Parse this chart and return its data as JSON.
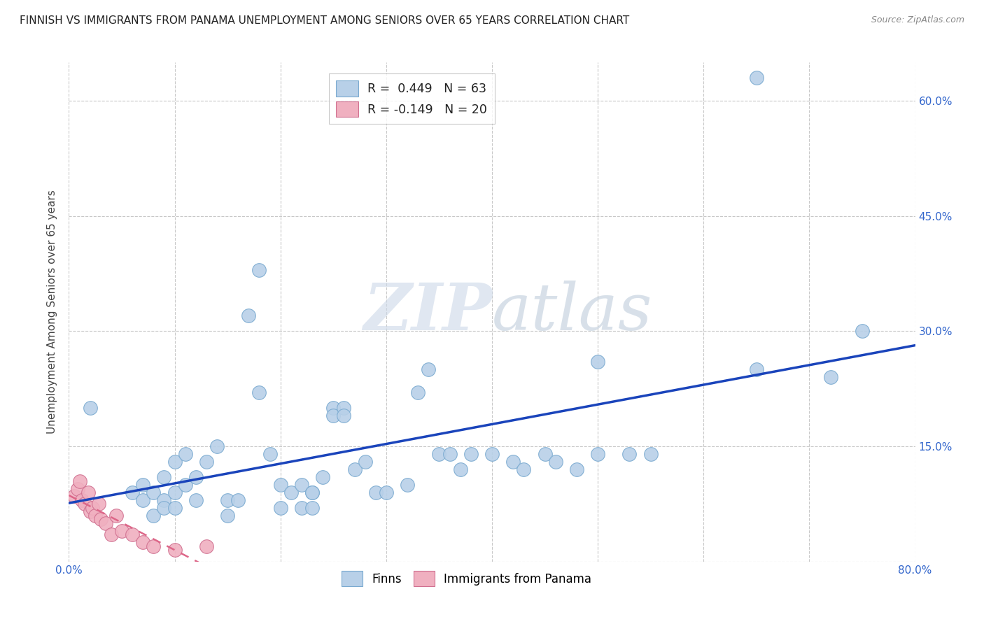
{
  "title": "FINNISH VS IMMIGRANTS FROM PANAMA UNEMPLOYMENT AMONG SENIORS OVER 65 YEARS CORRELATION CHART",
  "source": "Source: ZipAtlas.com",
  "ylabel": "Unemployment Among Seniors over 65 years",
  "xlim": [
    0.0,
    0.8
  ],
  "ylim": [
    0.0,
    0.65
  ],
  "x_ticks": [
    0.0,
    0.1,
    0.2,
    0.3,
    0.4,
    0.5,
    0.6,
    0.7,
    0.8
  ],
  "y_ticks": [
    0.0,
    0.15,
    0.3,
    0.45,
    0.6
  ],
  "y_tick_labels": [
    "",
    "15.0%",
    "30.0%",
    "45.0%",
    "60.0%"
  ],
  "grid_color": "#c8c8c8",
  "watermark_zip": "ZIP",
  "watermark_atlas": "atlas",
  "legend_R_finns": "0.449",
  "legend_N_finns": "63",
  "legend_R_panama": "-0.149",
  "legend_N_panama": "20",
  "finns_color": "#b8d0e8",
  "finns_edge_color": "#7aaad0",
  "panama_color": "#f0b0c0",
  "panama_edge_color": "#d07090",
  "regression_finns_color": "#1a44bb",
  "regression_panama_color": "#dd6688",
  "finns_x": [
    0.02,
    0.06,
    0.07,
    0.07,
    0.08,
    0.08,
    0.09,
    0.09,
    0.09,
    0.1,
    0.1,
    0.1,
    0.11,
    0.11,
    0.12,
    0.12,
    0.13,
    0.14,
    0.15,
    0.15,
    0.16,
    0.17,
    0.18,
    0.18,
    0.19,
    0.2,
    0.2,
    0.21,
    0.22,
    0.22,
    0.23,
    0.23,
    0.23,
    0.24,
    0.25,
    0.25,
    0.26,
    0.26,
    0.27,
    0.28,
    0.29,
    0.3,
    0.32,
    0.33,
    0.34,
    0.35,
    0.36,
    0.37,
    0.38,
    0.4,
    0.42,
    0.43,
    0.45,
    0.46,
    0.48,
    0.5,
    0.53,
    0.55,
    0.65,
    0.65,
    0.5,
    0.72,
    0.75
  ],
  "finns_y": [
    0.2,
    0.09,
    0.1,
    0.08,
    0.09,
    0.06,
    0.11,
    0.08,
    0.07,
    0.13,
    0.09,
    0.07,
    0.14,
    0.1,
    0.11,
    0.08,
    0.13,
    0.15,
    0.08,
    0.06,
    0.08,
    0.32,
    0.38,
    0.22,
    0.14,
    0.1,
    0.07,
    0.09,
    0.1,
    0.07,
    0.09,
    0.09,
    0.07,
    0.11,
    0.2,
    0.19,
    0.2,
    0.19,
    0.12,
    0.13,
    0.09,
    0.09,
    0.1,
    0.22,
    0.25,
    0.14,
    0.14,
    0.12,
    0.14,
    0.14,
    0.13,
    0.12,
    0.14,
    0.13,
    0.12,
    0.14,
    0.14,
    0.14,
    0.25,
    0.63,
    0.26,
    0.24,
    0.3
  ],
  "panama_x": [
    0.005,
    0.008,
    0.01,
    0.012,
    0.015,
    0.018,
    0.02,
    0.022,
    0.025,
    0.028,
    0.03,
    0.035,
    0.04,
    0.045,
    0.05,
    0.06,
    0.07,
    0.08,
    0.1,
    0.13
  ],
  "panama_y": [
    0.085,
    0.095,
    0.105,
    0.08,
    0.075,
    0.09,
    0.065,
    0.07,
    0.06,
    0.075,
    0.055,
    0.05,
    0.035,
    0.06,
    0.04,
    0.035,
    0.025,
    0.02,
    0.015,
    0.02
  ]
}
